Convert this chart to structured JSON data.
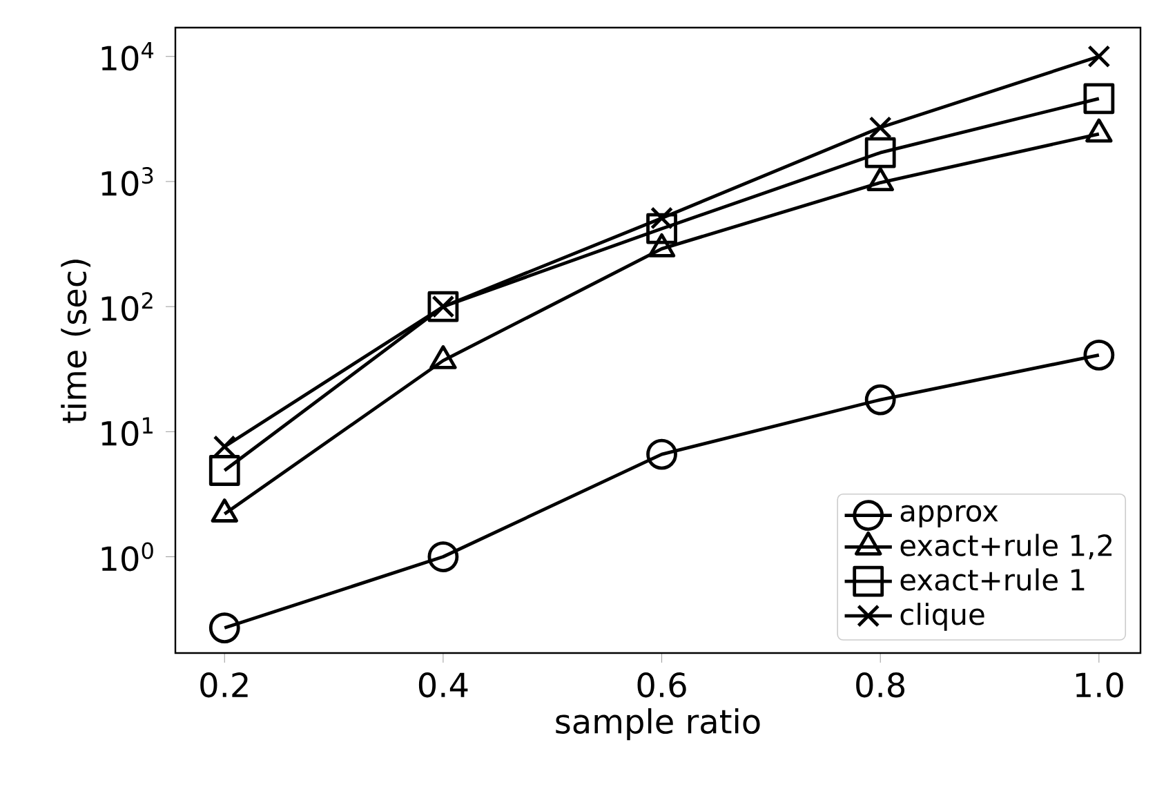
{
  "chart_data": {
    "type": "line",
    "xlabel": "sample ratio",
    "ylabel": "time (sec)",
    "log": "y",
    "x": [
      0.2,
      0.4,
      0.6,
      0.8,
      1.0
    ],
    "xlim": [
      0.155,
      1.038
    ],
    "xticks": [
      {
        "value": 0.2,
        "label": "0.2"
      },
      {
        "value": 0.4,
        "label": "0.4"
      },
      {
        "value": 0.6,
        "label": "0.6"
      },
      {
        "value": 0.8,
        "label": "0.8"
      },
      {
        "value": 1.0,
        "label": "1.0"
      }
    ],
    "ylim": [
      0.17,
      17000
    ],
    "yticks": [
      {
        "value": 1,
        "label": "10$^{0}$"
      },
      {
        "value": 10,
        "label": "10$^{1}$"
      },
      {
        "value": 100,
        "label": "10$^{2}$"
      },
      {
        "value": 1000,
        "label": "10$^{3}$"
      },
      {
        "value": 10000,
        "label": "10$^{4}$"
      }
    ],
    "legend": "bottom right",
    "grid": false,
    "line_style": "solid",
    "series": [
      {
        "name": "approx",
        "color": "#000000",
        "marker": "circle",
        "values": [
          0.27,
          1.0,
          6.6,
          18,
          41
        ]
      },
      {
        "name": "exact+rule 1,2",
        "color": "#000000",
        "marker": "triangle",
        "values": [
          2.2,
          37,
          290,
          980,
          2400
        ]
      },
      {
        "name": "exact+rule 1",
        "color": "#000000",
        "marker": "square",
        "values": [
          4.9,
          100,
          420,
          1700,
          4600
        ]
      },
      {
        "name": "clique",
        "color": "#000000",
        "marker": "cross",
        "values": [
          7.6,
          100,
          510,
          2700,
          10000
        ]
      }
    ]
  }
}
